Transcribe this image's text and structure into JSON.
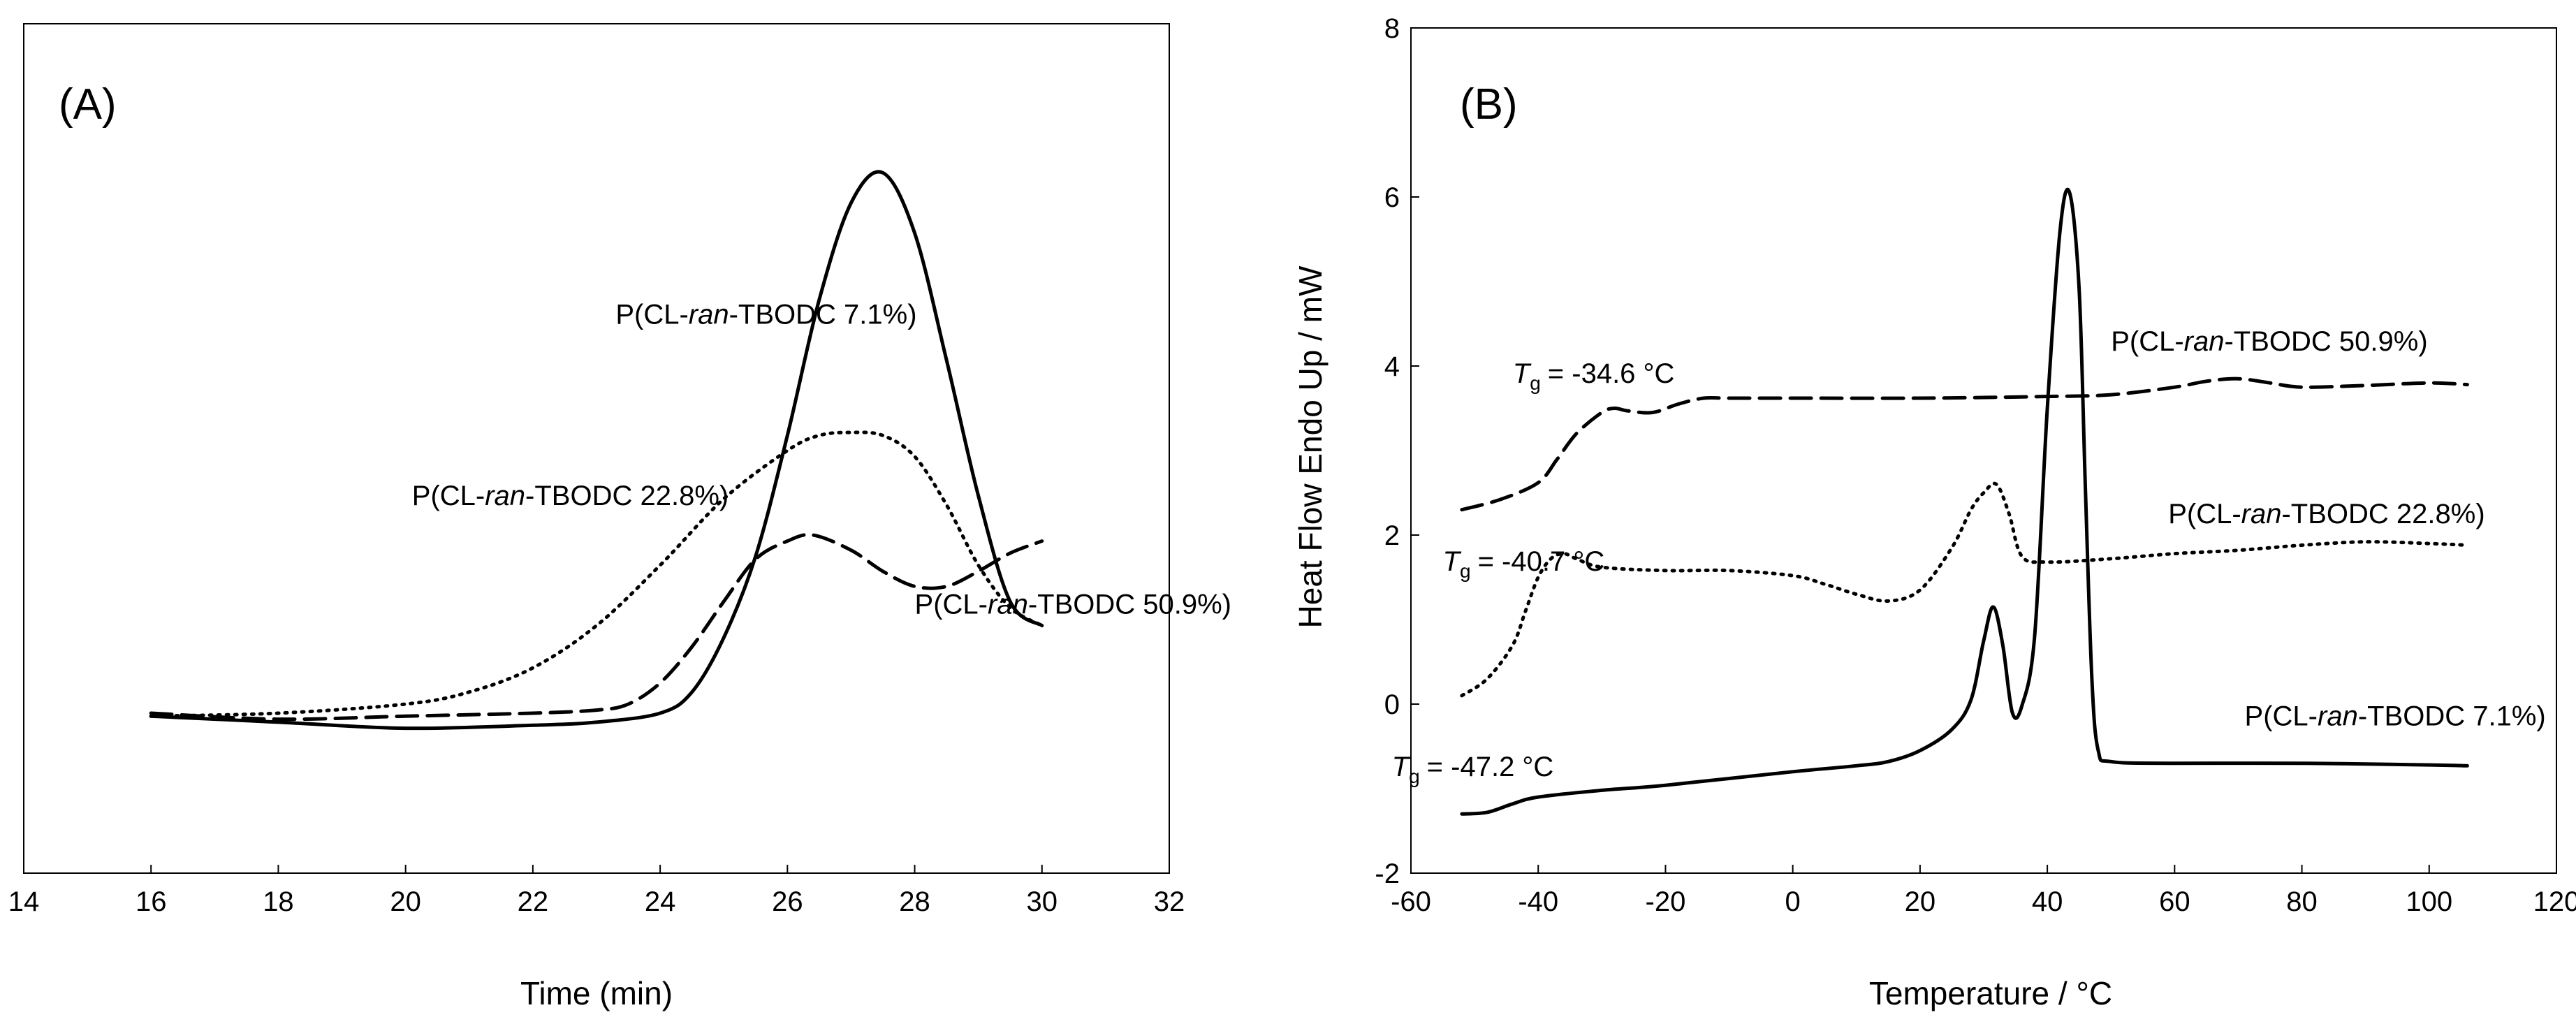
{
  "chart_data": [
    {
      "panel_label": "(A)",
      "type": "line",
      "xlabel": "Time (min)",
      "ylabel": "",
      "xlim": [
        14,
        32
      ],
      "x_ticks": [
        14,
        16,
        18,
        20,
        22,
        24,
        26,
        28,
        30,
        32
      ],
      "y_ticks": [],
      "grid": false,
      "series": [
        {
          "name": "P(CL-ran-TBODC 7.1%)",
          "line_style": "solid",
          "x": [
            16,
            18,
            20,
            22,
            23,
            24,
            24.5,
            25,
            25.5,
            26,
            26.5,
            27,
            27.5,
            28,
            28.5,
            29,
            29.5,
            30
          ],
          "y": [
            0.02,
            0.0,
            -0.02,
            -0.01,
            0.0,
            0.03,
            0.1,
            0.28,
            0.55,
            0.95,
            1.4,
            1.72,
            1.82,
            1.62,
            1.2,
            0.75,
            0.4,
            0.32
          ]
        },
        {
          "name": "P(CL-ran-TBODC 22.8%)",
          "line_style": "dotted",
          "x": [
            16,
            18,
            20,
            21,
            22,
            23,
            24,
            25,
            26,
            26.5,
            27,
            27.5,
            28,
            28.5,
            29,
            29.5,
            30
          ],
          "y": [
            0.02,
            0.03,
            0.06,
            0.1,
            0.18,
            0.32,
            0.52,
            0.74,
            0.9,
            0.95,
            0.96,
            0.95,
            0.88,
            0.72,
            0.52,
            0.38,
            0.32
          ]
        },
        {
          "name": "P(CL-ran-TBODC 50.9%)",
          "line_style": "dashed",
          "x": [
            16,
            18,
            20,
            22,
            23,
            23.5,
            24,
            24.5,
            25,
            25.5,
            26,
            26.4,
            27,
            27.5,
            28,
            28.5,
            29,
            29.5,
            30
          ],
          "y": [
            0.03,
            0.01,
            0.02,
            0.03,
            0.04,
            0.06,
            0.13,
            0.25,
            0.4,
            0.54,
            0.6,
            0.62,
            0.57,
            0.5,
            0.45,
            0.45,
            0.5,
            0.56,
            0.6
          ]
        }
      ],
      "annotations": [
        {
          "text": "P(CL-ran-TBODC 7.1%)",
          "x": 23.3,
          "y": 1.32
        },
        {
          "text": "P(CL-ran-TBODC 22.8%)",
          "x": 20.1,
          "y": 0.72
        },
        {
          "text": "P(CL-ran-TBODC 50.9%)",
          "x": 28.0,
          "y": 0.36
        }
      ]
    },
    {
      "panel_label": "(B)",
      "type": "line",
      "xlabel": "Temperature / °C",
      "ylabel": "Heat Flow Endo Up / mW",
      "xlim": [
        -60,
        120
      ],
      "ylim": [
        -2,
        8
      ],
      "x_ticks": [
        -60,
        -40,
        -20,
        0,
        20,
        40,
        60,
        80,
        100,
        120
      ],
      "y_ticks": [
        -2,
        0,
        2,
        4,
        6,
        8
      ],
      "grid": false,
      "series": [
        {
          "name": "P(CL-ran-TBODC 7.1%)",
          "line_style": "solid",
          "x": [
            -52,
            -48,
            -44,
            -40,
            -30,
            -20,
            0,
            10,
            15,
            20,
            25,
            28,
            30,
            31.5,
            33,
            34.5,
            36,
            38,
            40,
            42,
            43.5,
            45,
            46,
            47,
            48,
            50,
            60,
            80,
            100,
            106
          ],
          "y": [
            -1.3,
            -1.28,
            -1.18,
            -1.1,
            -1.02,
            -0.96,
            -0.8,
            -0.73,
            -0.68,
            -0.55,
            -0.3,
            0.05,
            0.75,
            1.15,
            0.7,
            -0.1,
            -0.02,
            0.8,
            3.5,
            5.6,
            6.05,
            4.9,
            2.5,
            0.3,
            -0.55,
            -0.68,
            -0.7,
            -0.7,
            -0.72,
            -0.73
          ]
        },
        {
          "name": "P(CL-ran-TBODC 22.8%)",
          "line_style": "dotted",
          "x": [
            -52,
            -48,
            -44,
            -42,
            -40,
            -38,
            -36,
            -34,
            -30,
            -20,
            -10,
            0,
            5,
            10,
            15,
            20,
            25,
            28,
            30,
            32,
            34,
            36,
            40,
            50,
            60,
            70,
            80,
            90,
            100,
            106
          ],
          "y": [
            0.1,
            0.3,
            0.7,
            1.1,
            1.5,
            1.72,
            1.78,
            1.72,
            1.62,
            1.58,
            1.58,
            1.52,
            1.42,
            1.3,
            1.22,
            1.35,
            1.85,
            2.3,
            2.5,
            2.6,
            2.25,
            1.75,
            1.68,
            1.72,
            1.78,
            1.82,
            1.88,
            1.92,
            1.9,
            1.88
          ]
        },
        {
          "name": "P(CL-ran-TBODC 50.9%)",
          "line_style": "dashed",
          "x": [
            -52,
            -46,
            -40,
            -37,
            -34,
            -30,
            -28,
            -26,
            -22,
            -18,
            -14,
            -10,
            0,
            20,
            40,
            50,
            60,
            65,
            70,
            75,
            80,
            90,
            100,
            106
          ],
          "y": [
            2.3,
            2.42,
            2.62,
            2.9,
            3.2,
            3.45,
            3.5,
            3.47,
            3.45,
            3.55,
            3.62,
            3.62,
            3.62,
            3.62,
            3.64,
            3.66,
            3.75,
            3.82,
            3.85,
            3.8,
            3.75,
            3.77,
            3.8,
            3.78
          ]
        }
      ],
      "annotations": [
        {
          "kind": "series",
          "text": "P(CL-ran-TBODC 50.9%)",
          "x": 50,
          "y": 4.18
        },
        {
          "kind": "series",
          "text": "P(CL-ran-TBODC 22.8%)",
          "x": 59,
          "y": 2.14
        },
        {
          "kind": "series",
          "text": "P(CL-ran-TBODC 7.1%)",
          "x": 71,
          "y": -0.25
        },
        {
          "kind": "tg",
          "symbol": "T",
          "subscript": "g",
          "value": "= -34.6 °C",
          "x": -44,
          "y": 3.8
        },
        {
          "kind": "tg",
          "symbol": "T",
          "subscript": "g",
          "value": "= -40.7 °C",
          "x": -55,
          "y": 1.58
        },
        {
          "kind": "tg",
          "symbol": "T",
          "subscript": "g",
          "value": "= -47.2 °C",
          "x": -63,
          "y": -0.85
        }
      ]
    }
  ]
}
